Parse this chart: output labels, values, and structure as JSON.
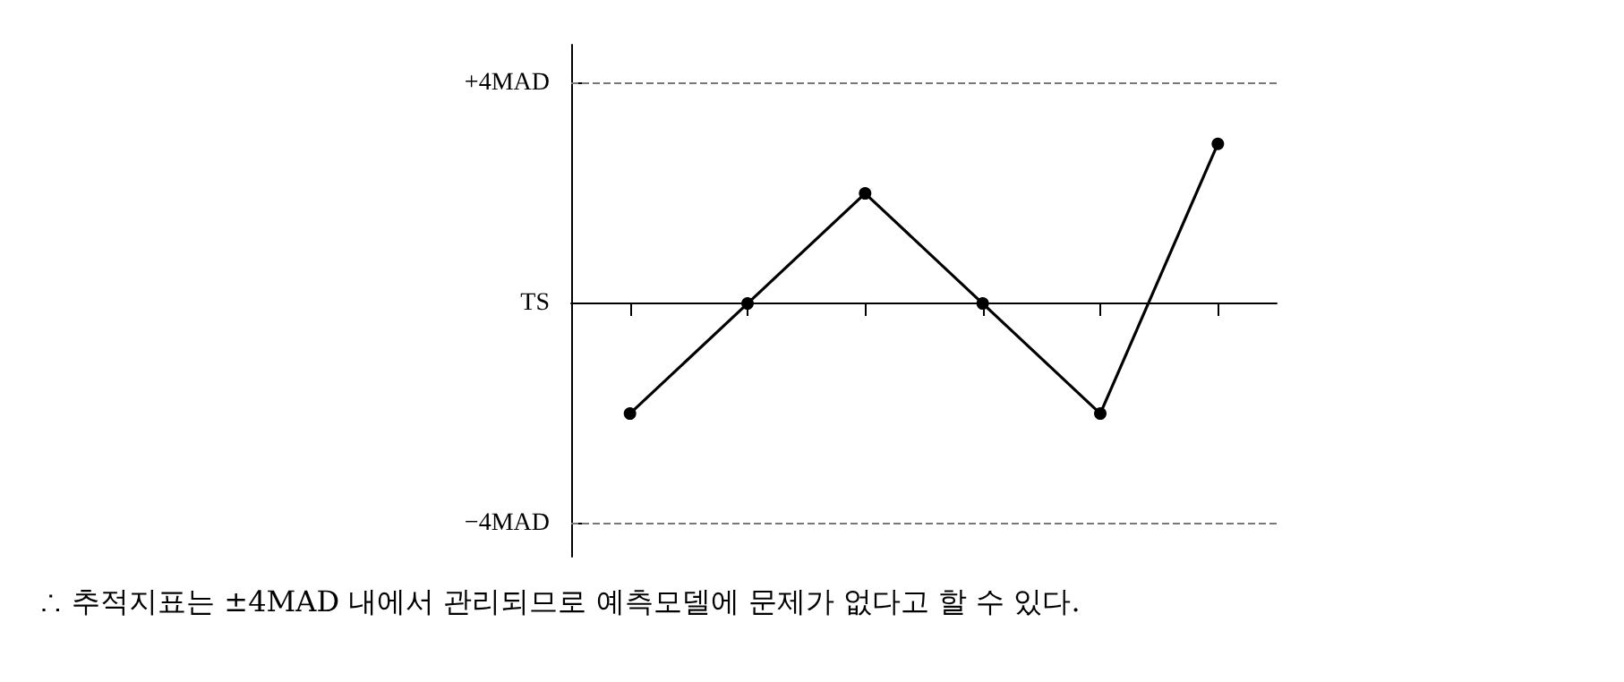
{
  "chart_data": {
    "type": "line",
    "categories": [
      null,
      null,
      null,
      null,
      null,
      null
    ],
    "series": [
      {
        "color": "#000000",
        "values": [
          -2,
          0,
          2,
          0,
          -2,
          2.9
        ]
      }
    ],
    "ylim": [
      -4.6,
      4.7
    ],
    "yticks": [
      {
        "value": -4,
        "label": "−4MAD"
      },
      {
        "value": 0,
        "label": "TS"
      },
      {
        "value": 4,
        "label": "+4MAD"
      }
    ],
    "ref_lines": [
      {
        "axis": "y",
        "value": 4,
        "color": "#777777",
        "line_style": "dashed"
      },
      {
        "axis": "y",
        "value": -4,
        "color": "#777777",
        "line_style": "dashed"
      }
    ],
    "marker": "circle",
    "line_style": "solid",
    "grid": false,
    "annotations": [
      "∴ 추적지표는 ±4MAD 내에서 관리되므로 예측모델에 문제가 없다고 할 수 있다."
    ]
  }
}
